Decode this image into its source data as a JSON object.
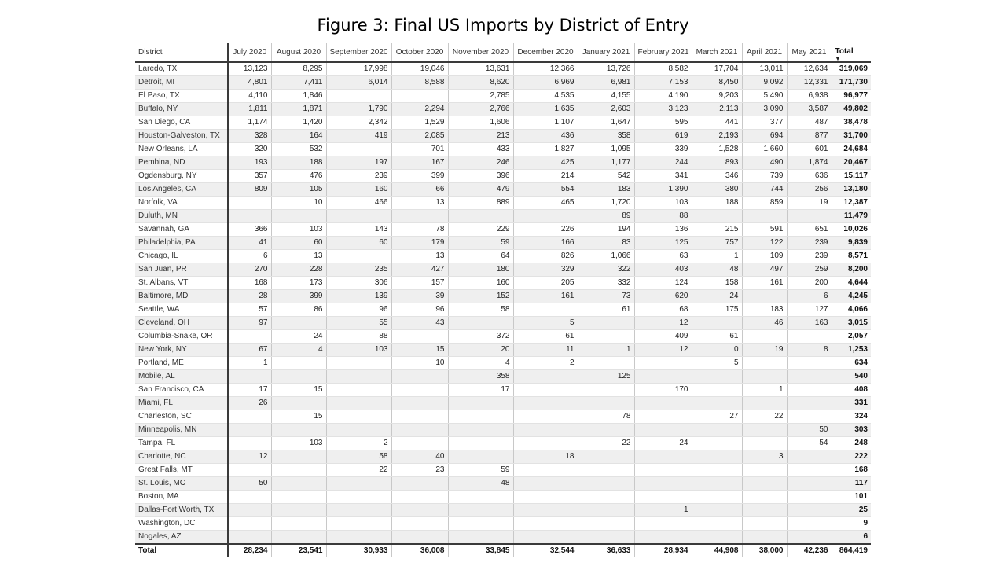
{
  "title": "Figure 3: Final US Imports by District of Entry",
  "columns": [
    "District",
    "July 2020",
    "August 2020",
    "September 2020",
    "October 2020",
    "November 2020",
    "December 2020",
    "January 2021",
    "February 2021",
    "March 2021",
    "April 2021",
    "May 2021",
    "Total"
  ],
  "rows": [
    [
      "Laredo, TX",
      "13,123",
      "8,295",
      "17,998",
      "19,046",
      "13,631",
      "12,366",
      "13,726",
      "8,582",
      "17,704",
      "13,011",
      "12,634",
      "319,069"
    ],
    [
      "Detroit, MI",
      "4,801",
      "7,411",
      "6,014",
      "8,588",
      "8,620",
      "6,969",
      "6,981",
      "7,153",
      "8,450",
      "9,092",
      "12,331",
      "171,730"
    ],
    [
      "El Paso, TX",
      "4,110",
      "1,846",
      "",
      "",
      "2,785",
      "4,535",
      "4,155",
      "4,190",
      "9,203",
      "5,490",
      "6,938",
      "96,977"
    ],
    [
      "Buffalo, NY",
      "1,811",
      "1,871",
      "1,790",
      "2,294",
      "2,766",
      "1,635",
      "2,603",
      "3,123",
      "2,113",
      "3,090",
      "3,587",
      "49,802"
    ],
    [
      "San Diego, CA",
      "1,174",
      "1,420",
      "2,342",
      "1,529",
      "1,606",
      "1,107",
      "1,647",
      "595",
      "441",
      "377",
      "487",
      "38,478"
    ],
    [
      "Houston-Galveston, TX",
      "328",
      "164",
      "419",
      "2,085",
      "213",
      "436",
      "358",
      "619",
      "2,193",
      "694",
      "877",
      "31,700"
    ],
    [
      "New Orleans, LA",
      "320",
      "532",
      "",
      "701",
      "433",
      "1,827",
      "1,095",
      "339",
      "1,528",
      "1,660",
      "601",
      "24,684"
    ],
    [
      "Pembina, ND",
      "193",
      "188",
      "197",
      "167",
      "246",
      "425",
      "1,177",
      "244",
      "893",
      "490",
      "1,874",
      "20,467"
    ],
    [
      "Ogdensburg, NY",
      "357",
      "476",
      "239",
      "399",
      "396",
      "214",
      "542",
      "341",
      "346",
      "739",
      "636",
      "15,117"
    ],
    [
      "Los Angeles, CA",
      "809",
      "105",
      "160",
      "66",
      "479",
      "554",
      "183",
      "1,390",
      "380",
      "744",
      "256",
      "13,180"
    ],
    [
      "Norfolk, VA",
      "",
      "10",
      "466",
      "13",
      "889",
      "465",
      "1,720",
      "103",
      "188",
      "859",
      "19",
      "12,387"
    ],
    [
      "Duluth, MN",
      "",
      "",
      "",
      "",
      "",
      "",
      "89",
      "88",
      "",
      "",
      "",
      "11,479"
    ],
    [
      "Savannah, GA",
      "366",
      "103",
      "143",
      "78",
      "229",
      "226",
      "194",
      "136",
      "215",
      "591",
      "651",
      "10,026"
    ],
    [
      "Philadelphia, PA",
      "41",
      "60",
      "60",
      "179",
      "59",
      "166",
      "83",
      "125",
      "757",
      "122",
      "239",
      "9,839"
    ],
    [
      "Chicago, IL",
      "6",
      "13",
      "",
      "13",
      "64",
      "826",
      "1,066",
      "63",
      "1",
      "109",
      "239",
      "8,571"
    ],
    [
      "San Juan, PR",
      "270",
      "228",
      "235",
      "427",
      "180",
      "329",
      "322",
      "403",
      "48",
      "497",
      "259",
      "8,200"
    ],
    [
      "St. Albans, VT",
      "168",
      "173",
      "306",
      "157",
      "160",
      "205",
      "332",
      "124",
      "158",
      "161",
      "200",
      "4,644"
    ],
    [
      "Baltimore, MD",
      "28",
      "399",
      "139",
      "39",
      "152",
      "161",
      "73",
      "620",
      "24",
      "",
      "6",
      "4,245"
    ],
    [
      "Seattle, WA",
      "57",
      "86",
      "96",
      "96",
      "58",
      "",
      "61",
      "68",
      "175",
      "183",
      "127",
      "4,066"
    ],
    [
      "Cleveland, OH",
      "97",
      "",
      "55",
      "43",
      "",
      "5",
      "",
      "12",
      "",
      "46",
      "163",
      "3,015"
    ],
    [
      "Columbia-Snake, OR",
      "",
      "24",
      "88",
      "",
      "372",
      "61",
      "",
      "409",
      "61",
      "",
      "",
      "2,057"
    ],
    [
      "New York, NY",
      "67",
      "4",
      "103",
      "15",
      "20",
      "11",
      "1",
      "12",
      "0",
      "19",
      "8",
      "1,253"
    ],
    [
      "Portland, ME",
      "1",
      "",
      "",
      "10",
      "4",
      "2",
      "",
      "",
      "5",
      "",
      "",
      "634"
    ],
    [
      "Mobile, AL",
      "",
      "",
      "",
      "",
      "358",
      "",
      "125",
      "",
      "",
      "",
      "",
      "540"
    ],
    [
      "San Francisco, CA",
      "17",
      "15",
      "",
      "",
      "17",
      "",
      "",
      "170",
      "",
      "1",
      "",
      "408"
    ],
    [
      "Miami, FL",
      "26",
      "",
      "",
      "",
      "",
      "",
      "",
      "",
      "",
      "",
      "",
      "331"
    ],
    [
      "Charleston, SC",
      "",
      "15",
      "",
      "",
      "",
      "",
      "78",
      "",
      "27",
      "22",
      "",
      "324"
    ],
    [
      "Minneapolis, MN",
      "",
      "",
      "",
      "",
      "",
      "",
      "",
      "",
      "",
      "",
      "50",
      "303"
    ],
    [
      "Tampa, FL",
      "",
      "103",
      "2",
      "",
      "",
      "",
      "22",
      "24",
      "",
      "",
      "54",
      "248"
    ],
    [
      "Charlotte, NC",
      "12",
      "",
      "58",
      "40",
      "",
      "18",
      "",
      "",
      "",
      "3",
      "",
      "222"
    ],
    [
      "Great Falls, MT",
      "",
      "",
      "22",
      "23",
      "59",
      "",
      "",
      "",
      "",
      "",
      "",
      "168"
    ],
    [
      "St. Louis, MO",
      "50",
      "",
      "",
      "",
      "48",
      "",
      "",
      "",
      "",
      "",
      "",
      "117"
    ],
    [
      "Boston, MA",
      "",
      "",
      "",
      "",
      "",
      "",
      "",
      "",
      "",
      "",
      "",
      "101"
    ],
    [
      "Dallas-Fort Worth, TX",
      "",
      "",
      "",
      "",
      "",
      "",
      "",
      "1",
      "",
      "",
      "",
      "25"
    ],
    [
      "Washington, DC",
      "",
      "",
      "",
      "",
      "",
      "",
      "",
      "",
      "",
      "",
      "",
      "9"
    ],
    [
      "Nogales, AZ",
      "",
      "",
      "",
      "",
      "",
      "",
      "",
      "",
      "",
      "",
      "",
      "6"
    ]
  ],
  "totals": [
    "Total",
    "28,234",
    "23,541",
    "30,933",
    "36,008",
    "33,845",
    "32,544",
    "36,633",
    "28,934",
    "44,908",
    "38,000",
    "42,236",
    "864,419"
  ],
  "sort_indicator": "▼"
}
